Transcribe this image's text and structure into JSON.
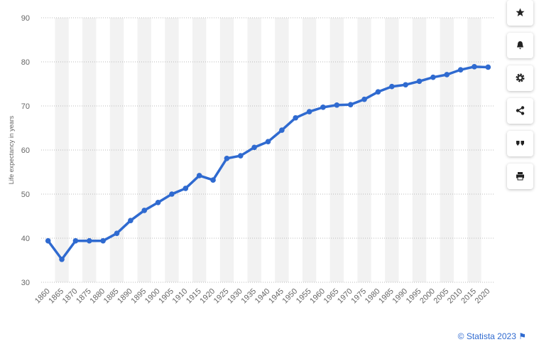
{
  "chart_data": {
    "type": "line",
    "y_label": "Life expectancy in years",
    "categories": [
      "1860",
      "1865",
      "1870",
      "1875",
      "1880",
      "1885",
      "1890",
      "1895",
      "1900",
      "1905",
      "1910",
      "1915",
      "1920",
      "1925",
      "1930",
      "1935",
      "1940",
      "1945",
      "1950",
      "1955",
      "1960",
      "1965",
      "1970",
      "1975",
      "1980",
      "1985",
      "1990",
      "1995",
      "2000",
      "2005",
      "2010",
      "2015",
      "2020"
    ],
    "series": [
      {
        "name": "Life expectancy",
        "color": "#2f6ad0",
        "values": [
          39.4,
          35.2,
          39.4,
          39.4,
          39.4,
          41.1,
          44.0,
          46.3,
          48.1,
          50.0,
          51.3,
          54.2,
          53.2,
          58.1,
          58.7,
          60.6,
          61.9,
          64.5,
          67.3,
          68.7,
          69.7,
          70.2,
          70.3,
          71.5,
          73.2,
          74.4,
          74.8,
          75.6,
          76.5,
          77.1,
          78.2,
          78.9,
          78.8
        ]
      }
    ],
    "ylim": [
      30,
      90
    ],
    "yticks": [
      30,
      40,
      50,
      60,
      70,
      80,
      90
    ],
    "grid": true,
    "band_color": "#f2f2f2",
    "credit": "© Statista 2023"
  }
}
